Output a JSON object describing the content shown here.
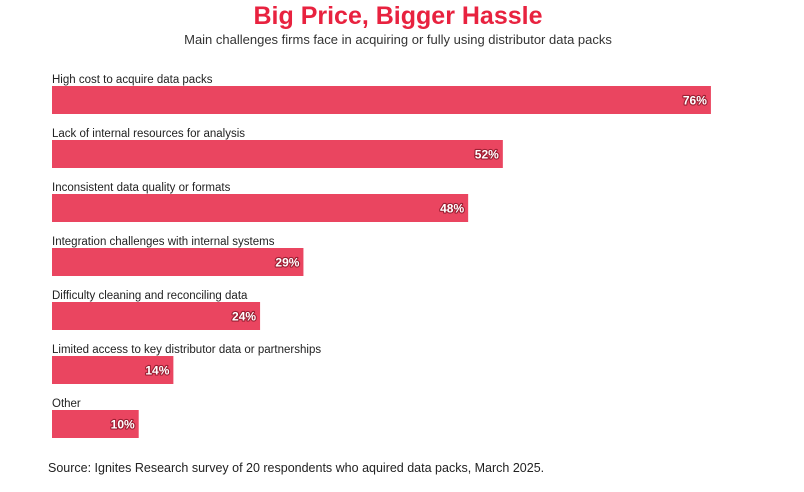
{
  "header": {
    "title": "Big Price, Bigger Hassle",
    "subtitle": "Main challenges firms face in acquiring or fully using distributor data packs"
  },
  "footer": {
    "source": "Source: Ignites Research survey of 20 respondents who aquired data packs, March 2025."
  },
  "colors": {
    "bar": "#ea4560",
    "title": "#e8223f",
    "bar_border": "#ffffff"
  },
  "chart_data": {
    "type": "bar",
    "orientation": "horizontal",
    "title": "Big Price, Bigger Hassle",
    "subtitle": "Main challenges firms face in acquiring or fully using distributor data packs",
    "categories": [
      "High cost to acquire data packs",
      "Lack of internal resources for analysis",
      "Inconsistent data quality or formats",
      "Integration challenges with internal systems",
      "Difficulty cleaning and reconciling data",
      "Limited access to key distributor data or partnerships",
      "Other"
    ],
    "values": [
      76,
      52,
      48,
      29,
      24,
      14,
      10
    ],
    "value_labels": [
      "76%",
      "52%",
      "48%",
      "29%",
      "24%",
      "14%",
      "10%"
    ],
    "unit": "%",
    "xlim": [
      0,
      100
    ],
    "grid": false,
    "legend": "none"
  }
}
